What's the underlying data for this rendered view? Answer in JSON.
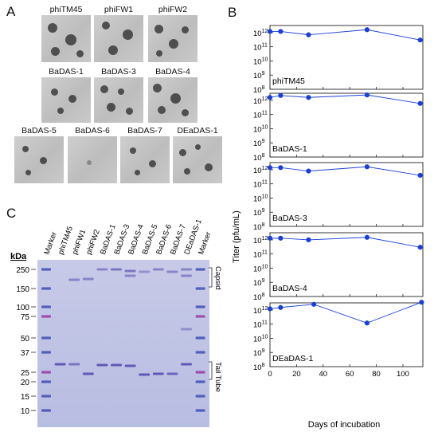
{
  "panels": {
    "a": "A",
    "b": "B",
    "c": "C"
  },
  "plaques": [
    {
      "label": "phiTM45"
    },
    {
      "label": "phiFW1"
    },
    {
      "label": "phiFW2"
    },
    {
      "label": "BaDAS-1"
    },
    {
      "label": "BaDAS-3"
    },
    {
      "label": "BaDAS-4"
    },
    {
      "label": "BaDAS-5"
    },
    {
      "label": "BaDAS-6"
    },
    {
      "label": "BaDAS-7"
    },
    {
      "label": "DEaDAS-1"
    }
  ],
  "chart_data": {
    "type": "line",
    "ylabel": "Titer (pfu/mL)",
    "xlabel": "Days of incubation",
    "x_ticks": [
      "0",
      "20",
      "40",
      "60",
      "80",
      "100"
    ],
    "xlim": [
      0,
      115
    ],
    "color": "#1a3fd6",
    "series": [
      {
        "name": "phiTM45",
        "y_ticks": [
          "10 12",
          "10 11",
          "10 10",
          "10 9",
          "10 8"
        ],
        "ylim_exp": [
          8,
          12.5
        ],
        "x": [
          0,
          8,
          29,
          73,
          113
        ],
        "y": [
          1200000000000.0,
          1200000000000.0,
          700000000000.0,
          1600000000000.0,
          300000000000.0
        ]
      },
      {
        "name": "BaDAS-1",
        "y_ticks": [
          "10 12",
          "10 11",
          "10 10",
          "10 9",
          "10 8"
        ],
        "ylim_exp": [
          8,
          12.5
        ],
        "x": [
          0,
          8,
          29,
          73,
          113
        ],
        "y": [
          1600000000000.0,
          2200000000000.0,
          1600000000000.0,
          2400000000000.0,
          600000000000.0
        ]
      },
      {
        "name": "BaDAS-3",
        "y_ticks": [
          "10 12",
          "10 11",
          "10 10",
          "10 9",
          "10 8"
        ],
        "ylim_exp": [
          8,
          12.5
        ],
        "x": [
          0,
          8,
          29,
          73,
          113
        ],
        "y": [
          1400000000000.0,
          1400000000000.0,
          800000000000.0,
          1600000000000.0,
          400000000000.0
        ]
      },
      {
        "name": "BaDAS-4",
        "y_ticks": [
          "10 12",
          "10 11",
          "10 10",
          "10 9",
          "10 8"
        ],
        "ylim_exp": [
          8,
          12.5
        ],
        "x": [
          0,
          8,
          29,
          73,
          113
        ],
        "y": [
          1300000000000.0,
          1300000000000.0,
          1000000000000.0,
          1500000000000.0,
          300000000000.0
        ]
      },
      {
        "name": "DEaDAS-1",
        "y_ticks": [
          "10 12",
          "10 11",
          "10 10",
          "10 9",
          "10 8"
        ],
        "ylim_exp": [
          8,
          12.5
        ],
        "x": [
          0,
          8,
          33,
          73,
          114
        ],
        "y": [
          1200000000000.0,
          1500000000000.0,
          2500000000000.0,
          120000000000.0,
          3500000000000.0
        ]
      }
    ]
  },
  "gel": {
    "lane_labels": [
      "Marker",
      "phiTM45",
      "phiFW1",
      "phiFW2",
      "BaDAS-1",
      "BaDAS-3",
      "BaDAS-4",
      "BaDAS-5",
      "BaDAS-6",
      "BaDAS-7",
      "DEaDAS-1",
      "Marker"
    ],
    "kda_label": "kDa",
    "markers": [
      "250",
      "150",
      "100",
      "75",
      "50",
      "37",
      "25",
      "20",
      "15",
      "10"
    ],
    "annotations": [
      "Capsid",
      "Tail Tube"
    ]
  }
}
